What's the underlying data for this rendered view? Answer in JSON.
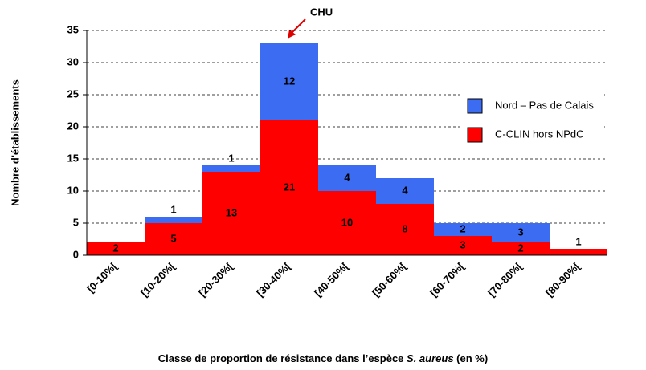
{
  "chart_data": {
    "type": "bar",
    "stacked": true,
    "categories": [
      "[0-10%[",
      "[10-20%[",
      "[20-30%[",
      "[30-40%[",
      "[40-50%[",
      "[50-60%[",
      "[60-70%[",
      "[70-80%[",
      "[80-90%["
    ],
    "series": [
      {
        "name": "C-CLIN hors NPdC",
        "color": "#ff0000",
        "values": [
          2,
          5,
          13,
          21,
          10,
          8,
          3,
          2,
          1
        ]
      },
      {
        "name": "Nord – Pas de Calais",
        "color": "#3b6cf2",
        "values": [
          0,
          1,
          1,
          12,
          4,
          4,
          2,
          3,
          0
        ]
      }
    ],
    "ylabel": "Nombre d'établissements",
    "xlabel_parts": [
      "Classe de proportion de résistance dans l’espèce ",
      "S. aureus",
      " (en %)"
    ],
    "annotation": "CHU",
    "ylim": [
      0,
      35
    ],
    "yticks": [
      0,
      5,
      10,
      15,
      20,
      25,
      30,
      35
    ],
    "grid": true
  }
}
